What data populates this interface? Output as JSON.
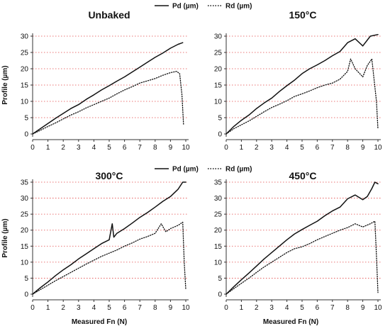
{
  "chart_data": [
    {
      "type": "line",
      "title": "Unbaked",
      "xlabel": "",
      "ylabel": "Profile (µm)",
      "xlim": [
        0,
        10
      ],
      "ylim": [
        0,
        30
      ],
      "xticks": [
        0,
        1,
        2,
        3,
        4,
        5,
        6,
        7,
        8,
        9,
        10
      ],
      "yticks": [
        0,
        5,
        10,
        15,
        20,
        25,
        30
      ],
      "grid": "horizontal dotted red",
      "series": [
        {
          "name": "Pd (µm)",
          "style": "solid",
          "x": [
            0,
            0.5,
            1,
            1.5,
            2,
            2.5,
            3,
            3.5,
            4,
            4.5,
            5,
            5.5,
            6,
            6.5,
            7,
            7.5,
            8,
            8.5,
            9,
            9.5,
            9.8
          ],
          "y": [
            0,
            1.6,
            3.2,
            4.8,
            6.3,
            7.8,
            9.0,
            10.6,
            12.0,
            13.5,
            14.8,
            16.2,
            17.5,
            19.0,
            20.5,
            22.0,
            23.5,
            24.8,
            26.3,
            27.5,
            28.0
          ]
        },
        {
          "name": "Rd (µm)",
          "style": "dotted",
          "x": [
            0,
            0.5,
            1,
            1.5,
            2,
            2.5,
            3,
            3.5,
            4,
            4.5,
            5,
            5.5,
            6,
            6.5,
            7,
            7.5,
            8,
            8.5,
            9,
            9.4,
            9.6,
            9.75,
            9.85
          ],
          "y": [
            0,
            1.1,
            2.3,
            3.4,
            4.6,
            5.8,
            6.8,
            8.0,
            9.0,
            10.0,
            11.0,
            12.3,
            13.5,
            14.5,
            15.6,
            16.3,
            17.0,
            18.0,
            18.8,
            19.2,
            18.5,
            12.0,
            3.0
          ]
        }
      ]
    },
    {
      "type": "line",
      "title": "150°C",
      "xlabel": "",
      "ylabel": "",
      "xlim": [
        0,
        10
      ],
      "ylim": [
        0,
        30
      ],
      "xticks": [
        0,
        1,
        2,
        3,
        4,
        5,
        6,
        7,
        8,
        9,
        10
      ],
      "yticks": [
        0,
        5,
        10,
        15,
        20,
        25,
        30
      ],
      "grid": "horizontal dotted red",
      "series": [
        {
          "name": "Pd (µm)",
          "style": "solid",
          "x": [
            0,
            0.5,
            1,
            1.5,
            2,
            2.5,
            3,
            3.5,
            4,
            4.5,
            5,
            5.5,
            6,
            6.5,
            7,
            7.5,
            8,
            8.5,
            9,
            9.5,
            10
          ],
          "y": [
            0,
            2.3,
            4.2,
            5.8,
            7.8,
            9.5,
            11.0,
            13.0,
            14.8,
            16.5,
            18.5,
            20.0,
            21.2,
            22.5,
            24.0,
            25.3,
            28.0,
            29.2,
            27.0,
            30.0,
            30.5
          ]
        },
        {
          "name": "Rd (µm)",
          "style": "dotted",
          "x": [
            0,
            0.5,
            1,
            1.5,
            2,
            2.5,
            3,
            3.5,
            4,
            4.5,
            5,
            5.5,
            6,
            6.5,
            7,
            7.5,
            8,
            8.2,
            8.5,
            9,
            9.3,
            9.6,
            9.9,
            10
          ],
          "y": [
            0,
            1.6,
            2.8,
            4.0,
            5.4,
            6.8,
            8.1,
            9.1,
            10.2,
            11.5,
            12.3,
            13.2,
            14.2,
            15.0,
            15.6,
            16.8,
            19.2,
            23.0,
            20.0,
            17.5,
            21.0,
            23.0,
            10.0,
            1.5
          ]
        }
      ]
    },
    {
      "type": "line",
      "title": "300°C",
      "xlabel": "Measured Fn (N)",
      "ylabel": "Profile (µm)",
      "xlim": [
        0,
        10
      ],
      "ylim": [
        0,
        35
      ],
      "xticks": [
        0,
        1,
        2,
        3,
        4,
        5,
        6,
        7,
        8,
        9,
        10
      ],
      "yticks": [
        0,
        5,
        10,
        15,
        20,
        25,
        30,
        35
      ],
      "grid": "horizontal dotted red",
      "series": [
        {
          "name": "Pd (µm)",
          "style": "solid",
          "x": [
            0,
            0.5,
            1,
            1.5,
            2,
            2.5,
            3,
            3.5,
            4,
            4.5,
            5,
            5.2,
            5.3,
            5.5,
            6,
            6.5,
            7,
            7.5,
            8,
            8.5,
            9,
            9.5,
            9.8,
            10
          ],
          "y": [
            0,
            2.0,
            3.8,
            5.8,
            7.6,
            9.2,
            11.0,
            12.6,
            14.2,
            15.8,
            17.0,
            22.0,
            17.8,
            19.0,
            20.5,
            22.2,
            24.0,
            25.5,
            27.2,
            29.0,
            30.5,
            32.8,
            35.0,
            35.0
          ]
        },
        {
          "name": "Rd (µm)",
          "style": "dotted",
          "x": [
            0,
            0.5,
            1,
            1.5,
            2,
            2.5,
            3,
            3.5,
            4,
            4.5,
            5,
            5.5,
            6,
            6.5,
            7,
            7.5,
            8,
            8.4,
            8.7,
            9,
            9.5,
            9.8,
            9.9,
            10
          ],
          "y": [
            0,
            1.4,
            2.8,
            4.2,
            5.5,
            6.8,
            8.1,
            9.4,
            10.6,
            11.8,
            12.8,
            13.8,
            15.0,
            16.0,
            17.2,
            18.0,
            19.0,
            22.0,
            19.5,
            20.5,
            21.5,
            22.5,
            10.0,
            1.5
          ]
        }
      ]
    },
    {
      "type": "line",
      "title": "450°C",
      "xlabel": "Measured Fn (N)",
      "ylabel": "",
      "xlim": [
        0,
        10
      ],
      "ylim": [
        0,
        35
      ],
      "xticks": [
        0,
        1,
        2,
        3,
        4,
        5,
        6,
        7,
        8,
        9,
        10
      ],
      "yticks": [
        0,
        5,
        10,
        15,
        20,
        25,
        30,
        35
      ],
      "grid": "horizontal dotted red",
      "series": [
        {
          "name": "Pd (µm)",
          "style": "solid",
          "x": [
            0,
            0.5,
            1,
            1.5,
            2,
            2.5,
            3,
            3.5,
            4,
            4.5,
            5,
            5.5,
            6,
            6.5,
            7,
            7.5,
            8,
            8.5,
            9,
            9.3,
            9.6,
            9.8,
            10
          ],
          "y": [
            0,
            2.3,
            4.5,
            6.6,
            8.8,
            11.0,
            13.0,
            15.0,
            17.0,
            18.8,
            20.2,
            21.5,
            22.8,
            24.5,
            26.0,
            27.2,
            29.8,
            31.0,
            29.5,
            30.5,
            33.0,
            35.0,
            34.5
          ]
        },
        {
          "name": "Rd (µm)",
          "style": "dotted",
          "x": [
            0,
            0.5,
            1,
            1.5,
            2,
            2.5,
            3,
            3.5,
            4,
            4.5,
            5,
            5.5,
            6,
            6.5,
            7,
            7.5,
            8,
            8.5,
            9,
            9.5,
            9.8,
            9.9,
            10
          ],
          "y": [
            0,
            1.7,
            3.4,
            5.0,
            6.8,
            8.5,
            10.0,
            11.5,
            13.0,
            14.2,
            14.8,
            15.8,
            17.0,
            18.0,
            19.0,
            20.0,
            20.8,
            22.0,
            21.0,
            22.0,
            22.8,
            12.0,
            0.5
          ]
        }
      ]
    }
  ],
  "legend": {
    "position": "top-center",
    "entries": [
      {
        "label": "Pd (µm)",
        "style": "solid"
      },
      {
        "label": "Rd (µm)",
        "style": "dotted"
      }
    ]
  },
  "colors": {
    "line": "#111111",
    "grid": "#e24a4a",
    "axis": "#333333"
  }
}
